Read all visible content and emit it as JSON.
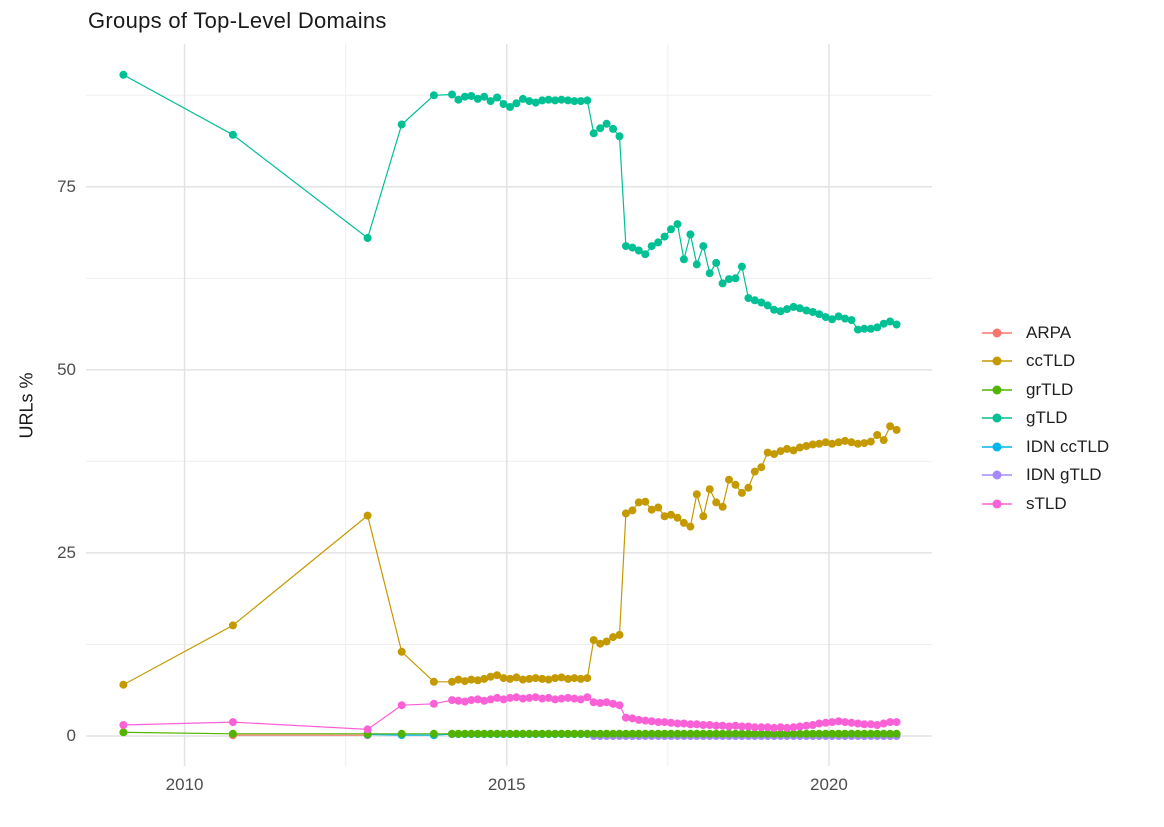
{
  "title": "Groups of Top-Level Domains",
  "chart_data": {
    "type": "line",
    "title": "Groups of Top-Level Domains",
    "xlabel": "",
    "ylabel": "URLs %",
    "xlim": [
      2008.47,
      2021.6
    ],
    "ylim": [
      -4.1,
      94.5
    ],
    "x_ticks": [
      "2010",
      "2015",
      "2020"
    ],
    "x_tick_values": [
      2010,
      2015,
      2020
    ],
    "x_minor_ticks": [
      2012.5,
      2017.5
    ],
    "y_ticks": [
      "0",
      "25",
      "50",
      "75"
    ],
    "y_tick_values": [
      0,
      25,
      50,
      75
    ],
    "y_minor_ticks": [
      12.5,
      37.5,
      62.5,
      87.5
    ],
    "grid": "major+minor",
    "grid_major_color": "#e3e3e3",
    "grid_minor_color": "#efefef",
    "legend_position": "right",
    "draw_order": [
      "ARPA",
      "IDN ccTLD",
      "IDN gTLD",
      "grTLD",
      "ccTLD",
      "gTLD",
      "sTLD"
    ],
    "series": [
      {
        "name": "ARPA",
        "color": "#F8766D",
        "points": [
          [
            2010.75,
            0.1
          ],
          [
            2012.84,
            0.1
          ]
        ]
      },
      {
        "name": "ccTLD",
        "color": "#C49A00",
        "points": [
          [
            2009.05,
            7.0
          ],
          [
            2010.75,
            15.1
          ],
          [
            2012.84,
            30.1
          ],
          [
            2013.37,
            11.5
          ],
          [
            2013.87,
            7.4
          ]
        ],
        "dense": {
          "x0": 2014.15,
          "dx": 0.1,
          "values": [
            7.4,
            7.7,
            7.5,
            7.7,
            7.6,
            7.8,
            8.1,
            8.3,
            7.9,
            7.8,
            8.0,
            7.7,
            7.8,
            7.9,
            7.8,
            7.7,
            7.9,
            8.0,
            7.8,
            7.9,
            7.8,
            7.9,
            13.1,
            12.6,
            12.9,
            13.5,
            13.8,
            30.4,
            30.8,
            31.9,
            32.0,
            30.9,
            31.2,
            30.0,
            30.2,
            29.8,
            29.1,
            28.6,
            33.0,
            30.0,
            33.7,
            31.9,
            31.3,
            35.0,
            34.3,
            33.2,
            33.9,
            36.1,
            36.7,
            38.7,
            38.5,
            38.9,
            39.2,
            39.0,
            39.4,
            39.6,
            39.8,
            39.9,
            40.1,
            39.9,
            40.1,
            40.3,
            40.1,
            39.9,
            40.0,
            40.2,
            41.1,
            40.4,
            42.3,
            41.8
          ]
        }
      },
      {
        "name": "grTLD",
        "color": "#53B400",
        "points": [
          [
            2009.05,
            0.5
          ],
          [
            2010.75,
            0.3
          ],
          [
            2012.84,
            0.3
          ],
          [
            2013.37,
            0.3
          ],
          [
            2013.87,
            0.3
          ]
        ],
        "fill": {
          "from": 2014.15,
          "to": 2021.05,
          "step": 0.1,
          "value": 0.3
        }
      },
      {
        "name": "gTLD",
        "color": "#00C094",
        "points": [
          [
            2009.05,
            90.3
          ],
          [
            2010.75,
            82.1
          ],
          [
            2012.84,
            68.0
          ],
          [
            2013.37,
            83.5
          ],
          [
            2013.87,
            87.5
          ]
        ],
        "dense": {
          "x0": 2014.15,
          "dx": 0.1,
          "values": [
            87.6,
            86.9,
            87.3,
            87.4,
            87.0,
            87.3,
            86.7,
            87.2,
            86.3,
            85.9,
            86.4,
            87.0,
            86.7,
            86.5,
            86.8,
            86.9,
            86.8,
            86.9,
            86.8,
            86.7,
            86.7,
            86.8,
            82.3,
            83.0,
            83.6,
            82.9,
            81.9,
            66.9,
            66.7,
            66.3,
            65.8,
            66.9,
            67.4,
            68.2,
            69.2,
            69.9,
            65.1,
            68.5,
            64.4,
            66.9,
            63.2,
            64.6,
            61.8,
            62.4,
            62.5,
            64.1,
            59.8,
            59.5,
            59.2,
            58.8,
            58.2,
            58.0,
            58.3,
            58.6,
            58.4,
            58.1,
            57.9,
            57.6,
            57.2,
            56.9,
            57.3,
            57.0,
            56.8,
            55.5,
            55.6,
            55.6,
            55.8,
            56.3,
            56.6,
            56.2
          ]
        }
      },
      {
        "name": "IDN ccTLD",
        "color": "#00B6EB",
        "points": [
          [
            2012.84,
            0.2
          ],
          [
            2013.37,
            0.12
          ],
          [
            2013.87,
            0.1
          ]
        ],
        "fill": {
          "from": 2014.15,
          "to": 2021.05,
          "step": 0.1,
          "value": 0.25
        }
      },
      {
        "name": "IDN gTLD",
        "color": "#A58AFF",
        "points": [],
        "fill": {
          "from": 2016.35,
          "to": 2021.05,
          "step": 0.1,
          "value": 0.0
        }
      },
      {
        "name": "sTLD",
        "color": "#FB61D7",
        "points": [
          [
            2009.05,
            1.5
          ],
          [
            2010.75,
            1.9
          ],
          [
            2012.84,
            0.9
          ],
          [
            2013.37,
            4.2
          ],
          [
            2013.87,
            4.4
          ]
        ],
        "dense": {
          "x0": 2014.15,
          "dx": 0.1,
          "values": [
            4.9,
            4.8,
            4.7,
            4.9,
            5.0,
            4.8,
            5.0,
            5.2,
            5.0,
            5.2,
            5.3,
            5.1,
            5.2,
            5.3,
            5.1,
            5.2,
            5.0,
            5.1,
            5.2,
            5.1,
            5.0,
            5.3,
            4.6,
            4.5,
            4.6,
            4.4,
            4.2,
            2.5,
            2.4,
            2.2,
            2.1,
            2.0,
            1.9,
            1.9,
            1.8,
            1.7,
            1.7,
            1.6,
            1.6,
            1.5,
            1.5,
            1.4,
            1.4,
            1.3,
            1.4,
            1.3,
            1.3,
            1.2,
            1.2,
            1.2,
            1.1,
            1.2,
            1.1,
            1.2,
            1.3,
            1.4,
            1.5,
            1.7,
            1.8,
            1.9,
            2.0,
            1.9,
            1.8,
            1.7,
            1.6,
            1.6,
            1.5,
            1.7,
            1.9,
            1.9
          ]
        }
      }
    ]
  }
}
